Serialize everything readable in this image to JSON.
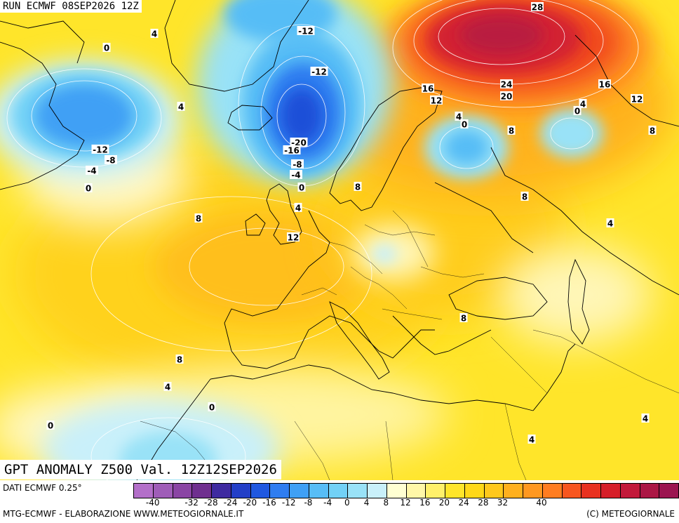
{
  "header": {
    "run_label": "RUN ECMWF 08SEP2026 12Z",
    "title": "GPT ANOMALY Z500 Val. 12Z12SEP2026"
  },
  "footer": {
    "data_source": "DATI ECMWF 0.25°",
    "credit": "MTG-ECMWF - ELABORAZIONE WWW.METEOGIORNALE.IT",
    "copyright": "(C) METEOGIORNALE"
  },
  "legend": {
    "colors": [
      "#b36fc9",
      "#9f5db8",
      "#8a45a4",
      "#6f2f8f",
      "#3e2aa0",
      "#233fc7",
      "#1f58e0",
      "#2f7df0",
      "#3fa0f5",
      "#57bdf6",
      "#72d1f6",
      "#99e2f7",
      "#c9f0fa",
      "#ffffd2",
      "#fff7a8",
      "#fff06a",
      "#ffe52a",
      "#ffd818",
      "#ffc81c",
      "#ffb01e",
      "#ff9820",
      "#ff7d20",
      "#f7561f",
      "#e8311f",
      "#d61f29",
      "#c2193a",
      "#ab1745",
      "#9b1550"
    ],
    "tick_labels": [
      "-40",
      "-32",
      "-28",
      "-24",
      "-20",
      "-16",
      "-12",
      "-8",
      "-4",
      "0",
      "4",
      "8",
      "12",
      "16",
      "20",
      "24",
      "28",
      "32",
      "40"
    ]
  },
  "contour_labels": [
    "4",
    "0",
    "-12",
    "-12",
    "4",
    "28",
    "16",
    "12",
    "24",
    "20",
    "16",
    "12",
    "4",
    "0",
    "0",
    "4",
    "8",
    "8",
    "-12",
    "-8",
    "-4",
    "0",
    "-20",
    "-16",
    "-8",
    "-4",
    "0",
    "4",
    "8",
    "8",
    "12",
    "4",
    "8",
    "8",
    "8",
    "4",
    "0",
    "0",
    "4",
    "4"
  ]
}
